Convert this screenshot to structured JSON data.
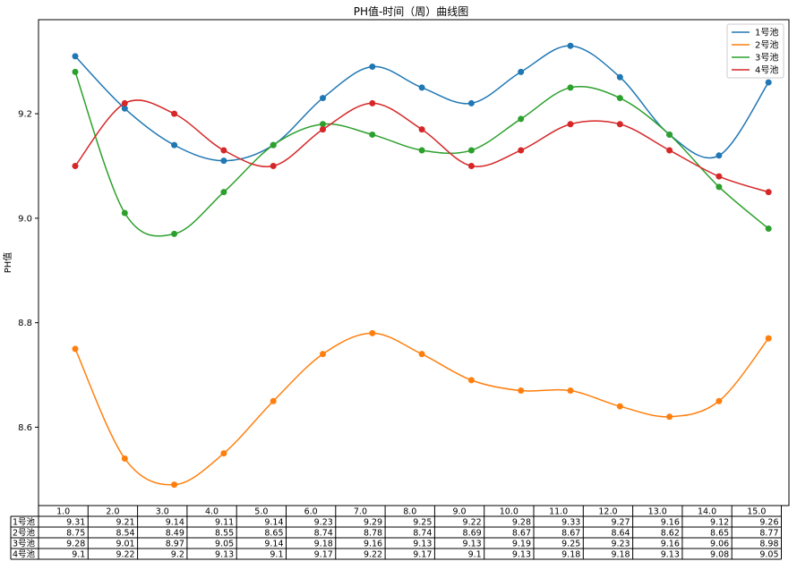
{
  "chart_data": {
    "type": "line",
    "title": "PH值-时间（周）曲线图",
    "xlabel": "",
    "ylabel": "PH值",
    "ylim": [
      8.45,
      9.38
    ],
    "yticks": [
      8.6,
      8.8,
      9.0,
      9.2
    ],
    "ytick_labels": [
      "8.6",
      "8.8",
      "9.0",
      "9.2"
    ],
    "grid": false,
    "legend_position": "top-right",
    "x": [
      1,
      2,
      3,
      4,
      5,
      6,
      7,
      8,
      9,
      10,
      11,
      12,
      13,
      14,
      15
    ],
    "x_labels": [
      "1.0",
      "2.0",
      "3.0",
      "4.0",
      "5.0",
      "6.0",
      "7.0",
      "8.0",
      "9.0",
      "10.0",
      "11.0",
      "12.0",
      "13.0",
      "14.0",
      "15.0"
    ],
    "series": [
      {
        "name": "1号池",
        "color": "#1f77b4",
        "values": [
          9.31,
          9.21,
          9.14,
          9.11,
          9.14,
          9.23,
          9.29,
          9.25,
          9.22,
          9.28,
          9.33,
          9.27,
          9.16,
          9.12,
          9.26
        ]
      },
      {
        "name": "2号池",
        "color": "#ff7f0e",
        "values": [
          8.75,
          8.54,
          8.49,
          8.55,
          8.65,
          8.74,
          8.78,
          8.74,
          8.69,
          8.67,
          8.67,
          8.64,
          8.62,
          8.65,
          8.77
        ]
      },
      {
        "name": "3号池",
        "color": "#2ca02c",
        "values": [
          9.28,
          9.01,
          8.97,
          9.05,
          9.14,
          9.18,
          9.16,
          9.13,
          9.13,
          9.19,
          9.25,
          9.23,
          9.16,
          9.06,
          8.98
        ]
      },
      {
        "name": "4号池",
        "color": "#d62728",
        "values": [
          9.1,
          9.22,
          9.2,
          9.13,
          9.1,
          9.17,
          9.22,
          9.17,
          9.1,
          9.13,
          9.18,
          9.18,
          9.13,
          9.08,
          9.05
        ]
      }
    ],
    "table": {
      "row_labels": [
        "1号池",
        "2号池",
        "3号池",
        "4号池"
      ],
      "rows": [
        [
          "9.31",
          "9.21",
          "9.14",
          "9.11",
          "9.14",
          "9.23",
          "9.29",
          "9.25",
          "9.22",
          "9.28",
          "9.33",
          "9.27",
          "9.16",
          "9.12",
          "9.26"
        ],
        [
          "8.75",
          "8.54",
          "8.49",
          "8.55",
          "8.65",
          "8.74",
          "8.78",
          "8.74",
          "8.69",
          "8.67",
          "8.67",
          "8.64",
          "8.62",
          "8.65",
          "8.77"
        ],
        [
          "9.28",
          "9.01",
          "8.97",
          "9.05",
          "9.14",
          "9.18",
          "9.16",
          "9.13",
          "9.13",
          "9.19",
          "9.25",
          "9.23",
          "9.16",
          "9.06",
          "8.98"
        ],
        [
          "9.1",
          "9.22",
          "9.2",
          "9.13",
          "9.1",
          "9.17",
          "9.22",
          "9.17",
          "9.1",
          "9.13",
          "9.18",
          "9.18",
          "9.13",
          "9.08",
          "9.05"
        ]
      ]
    }
  }
}
